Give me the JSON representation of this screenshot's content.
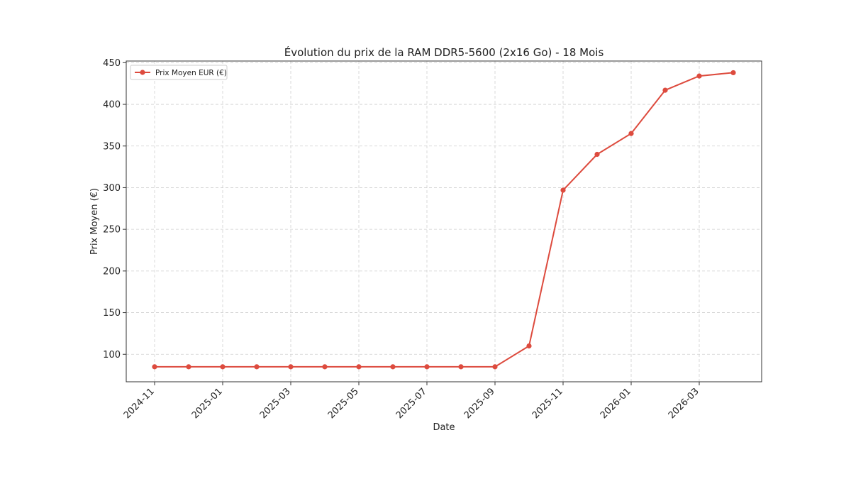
{
  "chart_data": {
    "type": "line",
    "title": "Évolution du prix de la RAM DDR5-5600 (2x16 Go) - 18 Mois",
    "xlabel": "Date",
    "ylabel": "Prix Moyen (€)",
    "x": [
      "2024-11",
      "2024-12",
      "2025-01",
      "2025-02",
      "2025-03",
      "2025-04",
      "2025-05",
      "2025-06",
      "2025-07",
      "2025-08",
      "2025-09",
      "2025-10",
      "2025-11",
      "2025-12",
      "2026-01",
      "2026-02",
      "2026-03",
      "2026-04"
    ],
    "series": [
      {
        "name": "Prix Moyen EUR (€)",
        "color": "#dd4b3e",
        "values": [
          85,
          85,
          85,
          85,
          85,
          85,
          85,
          85,
          85,
          85,
          85,
          110,
          297,
          340,
          365,
          417,
          434,
          438
        ]
      }
    ],
    "x_ticks": [
      "2024-11",
      "2025-01",
      "2025-03",
      "2025-05",
      "2025-07",
      "2025-09",
      "2025-11",
      "2026-01",
      "2026-03"
    ],
    "y_ticks": [
      100,
      150,
      200,
      250,
      300,
      350,
      400,
      450
    ],
    "ylim": [
      67,
      452
    ],
    "grid": true,
    "legend_position": "top-left"
  }
}
